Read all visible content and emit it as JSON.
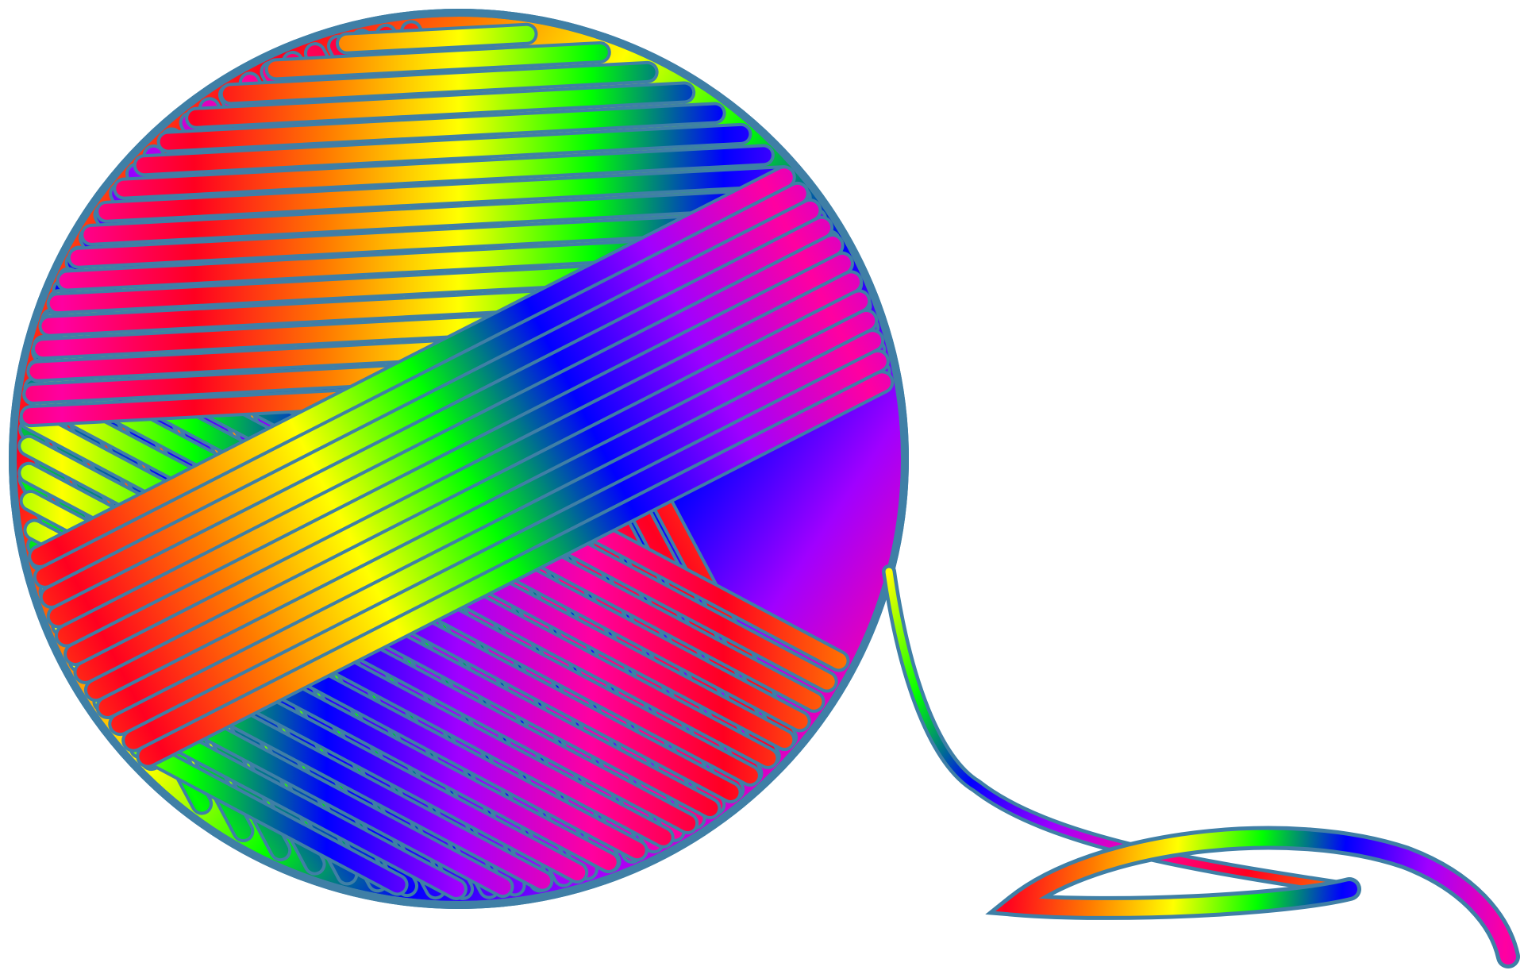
{
  "palette": [
    "#ff0020",
    "#ff7a00",
    "#ffff00",
    "#00ff00",
    "#0000ff",
    "#a000ff",
    "#ff00a0"
  ],
  "outline_color": "#3f7fa6",
  "background_color": "#ffffff"
}
